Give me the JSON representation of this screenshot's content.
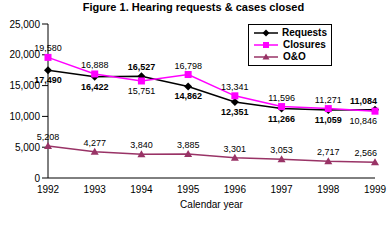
{
  "chart_data": {
    "type": "line",
    "title": "Figure 1. Hearing requests & cases closed",
    "x_label": "Calendar year",
    "categories": [
      1992,
      1993,
      1994,
      1995,
      1996,
      1997,
      1998,
      1999
    ],
    "ylim": [
      0,
      25000
    ],
    "yticks": [
      0,
      {
        "value": 5000,
        "label": "5,000"
      },
      {
        "value": 10000,
        "label": "10,000"
      },
      {
        "value": 15000,
        "label": "15,000"
      },
      {
        "value": 20000,
        "label": "20,000"
      },
      {
        "value": 25000,
        "label": "25,000"
      }
    ],
    "grid": false,
    "legend": "top-right",
    "data_labels": true,
    "series": [
      {
        "name": "Requests",
        "color": "#000000",
        "marker": "diamond",
        "values": [
          17490,
          16422,
          16527,
          14862,
          12351,
          11266,
          11059,
          11084
        ],
        "value_labels": [
          "17,490",
          "16,422",
          "16,527",
          "14,862",
          "12,351",
          "11,266",
          "11,059",
          "11,084"
        ]
      },
      {
        "name": "Closures",
        "color": "#FF00FF",
        "marker": "square",
        "values": [
          19580,
          16888,
          15751,
          16798,
          13341,
          11596,
          11271,
          10846
        ],
        "value_labels": [
          "19,580",
          "16,888",
          "15,751",
          "16,798",
          "13,341",
          "11,596",
          "11,271",
          "10,846"
        ]
      },
      {
        "name": "O&O",
        "color": "#993366",
        "marker": "triangle",
        "values": [
          5208,
          4277,
          3840,
          3885,
          3301,
          3053,
          2717,
          2566
        ],
        "value_labels": [
          "5,208",
          "4,277",
          "3,840",
          "3,885",
          "3,301",
          "3,053",
          "2,717",
          "2,566"
        ]
      }
    ]
  }
}
